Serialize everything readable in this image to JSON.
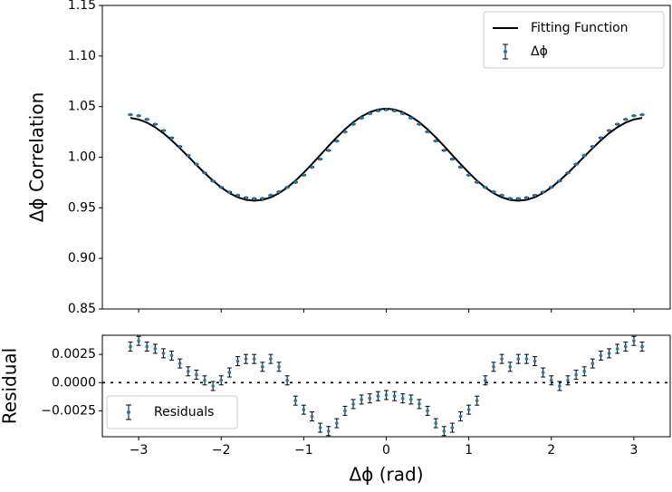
{
  "chart_data": [
    {
      "type": "errorbar",
      "ylabel": "Δϕ Correlation",
      "legend": "upper right",
      "xlim": [
        -3.44,
        3.44
      ],
      "ylim": [
        0.85,
        1.15
      ],
      "yticks": [
        0.85,
        {
          "value": 0.9,
          "label": "0.90"
        },
        0.95,
        {
          "value": 1,
          "label": "1.00"
        },
        1.05,
        {
          "value": 1.1,
          "label": "1.10"
        },
        1.15
      ],
      "x": [
        -3.1,
        -3.0,
        -2.9,
        -2.8,
        -2.7,
        -2.6,
        -2.5,
        -2.4,
        -2.3,
        -2.2,
        -2.1,
        -2.0,
        -1.9,
        -1.8,
        -1.7,
        -1.6,
        -1.5,
        -1.4,
        -1.3,
        -1.2,
        -1.1,
        -1.0,
        -0.9,
        -0.8,
        -0.7,
        -0.6,
        -0.5,
        -0.4,
        -0.3,
        -0.2,
        -0.1,
        0,
        0.1,
        0.2,
        0.3,
        0.4,
        0.5,
        0.6,
        0.7,
        0.8,
        0.9,
        1.0,
        1.1,
        1.2,
        1.3,
        1.4,
        1.5,
        1.6,
        1.7,
        1.8,
        1.9,
        2.0,
        2.1,
        2.2,
        2.3,
        2.4,
        2.5,
        2.6,
        2.7,
        2.8,
        2.9,
        3.0,
        3.1
      ],
      "series": [
        {
          "name": "Fitting Function",
          "kind": "line",
          "color": "#000000",
          "values": [
            1.0388,
            1.0373,
            1.0342,
            1.0296,
            1.0237,
            1.0167,
            1.0089,
            1.0007,
            0.9924,
            0.9843,
            0.9768,
            0.9701,
            0.9646,
            0.9604,
            0.9579,
            0.957,
            0.9578,
            0.9603,
            0.9644,
            0.97,
            0.9768,
            0.9847,
            0.9932,
            1.0021,
            1.011,
            1.0196,
            1.0276,
            1.0345,
            1.0402,
            1.0445,
            1.0471,
            1.048,
            1.0471,
            1.0445,
            1.0402,
            1.0345,
            1.0276,
            1.0196,
            1.011,
            1.0021,
            0.9932,
            0.9847,
            0.9768,
            0.97,
            0.9644,
            0.9603,
            0.9578,
            0.957,
            0.9579,
            0.9604,
            0.9646,
            0.9701,
            0.9768,
            0.9843,
            0.9924,
            1.0007,
            1.0089,
            1.0167,
            1.0237,
            1.0296,
            1.0342,
            1.0373,
            1.0388
          ]
        },
        {
          "name": "Δϕ",
          "kind": "errorbar",
          "color": "#1f77b4",
          "values": [
            1.042,
            1.041,
            1.0374,
            1.0326,
            1.0263,
            1.0191,
            1.0106,
            1.0017,
            0.9931,
            0.9845,
            0.9765,
            0.9703,
            0.9655,
            0.9623,
            0.96,
            0.9591,
            0.9592,
            0.9624,
            0.9658,
            0.9702,
            0.9752,
            0.9823,
            0.9902,
            0.9981,
            1.0067,
            1.016,
            1.0251,
            1.0326,
            1.0387,
            1.0431,
            1.0459,
            1.0469,
            1.0459,
            1.0431,
            1.0387,
            1.0326,
            1.0251,
            1.016,
            1.0067,
            0.9981,
            0.9902,
            0.9823,
            0.9752,
            0.9702,
            0.9658,
            0.9624,
            0.9592,
            0.9591,
            0.96,
            0.9623,
            0.9655,
            0.9703,
            0.9765,
            0.9845,
            0.9931,
            1.0017,
            1.0106,
            1.0191,
            1.0263,
            1.0326,
            1.0374,
            1.041,
            1.042
          ],
          "errors": [
            0.0004,
            0.0004,
            0.0004,
            0.0004,
            0.0004,
            0.0004,
            0.0004,
            0.0004,
            0.0004,
            0.0004,
            0.0004,
            0.0004,
            0.0004,
            0.0004,
            0.0004,
            0.0004,
            0.0004,
            0.0004,
            0.0004,
            0.0004,
            0.0004,
            0.0004,
            0.0004,
            0.0004,
            0.0004,
            0.0004,
            0.0004,
            0.0004,
            0.0004,
            0.0004,
            0.0004,
            0.0004,
            0.0004,
            0.0004,
            0.0004,
            0.0004,
            0.0004,
            0.0004,
            0.0004,
            0.0004,
            0.0004,
            0.0004,
            0.0004,
            0.0004,
            0.0004,
            0.0004,
            0.0004,
            0.0004,
            0.0004,
            0.0004,
            0.0004,
            0.0004,
            0.0004,
            0.0004,
            0.0004,
            0.0004,
            0.0004,
            0.0004,
            0.0004,
            0.0004,
            0.0004,
            0.0004,
            0.0004
          ]
        }
      ]
    },
    {
      "type": "errorbar",
      "ylabel": "Residual",
      "xlabel": "Δϕ (rad)",
      "legend": "lower left",
      "reference_line": 0,
      "xlim": [
        -3.44,
        3.44
      ],
      "ylim": [
        -0.0048,
        0.0042
      ],
      "xticks": [
        {
          "value": -3,
          "label": "−3"
        },
        {
          "value": -2,
          "label": "−2"
        },
        {
          "value": -1,
          "label": "−1"
        },
        0,
        1,
        2,
        3
      ],
      "yticks": [
        {
          "value": -0.0025,
          "label": "−0.0025"
        },
        {
          "value": 0,
          "label": "0.0000"
        },
        {
          "value": 0.0025,
          "label": "0.0025"
        }
      ],
      "x": [
        -3.1,
        -3.0,
        -2.9,
        -2.8,
        -2.7,
        -2.6,
        -2.5,
        -2.4,
        -2.3,
        -2.2,
        -2.1,
        -2.0,
        -1.9,
        -1.8,
        -1.7,
        -1.6,
        -1.5,
        -1.4,
        -1.3,
        -1.2,
        -1.1,
        -1.0,
        -0.9,
        -0.8,
        -0.7,
        -0.6,
        -0.5,
        -0.4,
        -0.3,
        -0.2,
        -0.1,
        0,
        0.1,
        0.2,
        0.3,
        0.4,
        0.5,
        0.6,
        0.7,
        0.8,
        0.9,
        1.0,
        1.1,
        1.2,
        1.3,
        1.4,
        1.5,
        1.6,
        1.7,
        1.8,
        1.9,
        2.0,
        2.1,
        2.2,
        2.3,
        2.4,
        2.5,
        2.6,
        2.7,
        2.8,
        2.9,
        3.0,
        3.1
      ],
      "series": [
        {
          "name": "Residuals",
          "kind": "errorbar",
          "color": "#1f77b4",
          "values": [
            0.0032,
            0.0037,
            0.0032,
            0.003,
            0.0026,
            0.0024,
            0.0017,
            0.001,
            0.0007,
            0.0002,
            -0.0003,
            0.0002,
            0.0009,
            0.0019,
            0.0021,
            0.0021,
            0.0014,
            0.0021,
            0.0014,
            0.0002,
            -0.0016,
            -0.0024,
            -0.003,
            -0.004,
            -0.0043,
            -0.0036,
            -0.0025,
            -0.0019,
            -0.0015,
            -0.0014,
            -0.0012,
            -0.0011,
            -0.0012,
            -0.0014,
            -0.0015,
            -0.0019,
            -0.0025,
            -0.0036,
            -0.0043,
            -0.004,
            -0.003,
            -0.0024,
            -0.0016,
            0.0002,
            0.0014,
            0.0021,
            0.0014,
            0.0021,
            0.0021,
            0.0019,
            0.0009,
            0.0002,
            -0.0003,
            0.0002,
            0.0007,
            0.001,
            0.0017,
            0.0024,
            0.0026,
            0.003,
            0.0032,
            0.0037,
            0.0032
          ],
          "errors": [
            0.0004,
            0.0004,
            0.0004,
            0.0004,
            0.0004,
            0.0004,
            0.0004,
            0.0004,
            0.0004,
            0.0004,
            0.0004,
            0.0004,
            0.0004,
            0.0004,
            0.0004,
            0.0004,
            0.0004,
            0.0004,
            0.0004,
            0.0004,
            0.0004,
            0.0004,
            0.0004,
            0.0004,
            0.0004,
            0.0004,
            0.0004,
            0.0004,
            0.0004,
            0.0004,
            0.0004,
            0.0004,
            0.0004,
            0.0004,
            0.0004,
            0.0004,
            0.0004,
            0.0004,
            0.0004,
            0.0004,
            0.0004,
            0.0004,
            0.0004,
            0.0004,
            0.0004,
            0.0004,
            0.0004,
            0.0004,
            0.0004,
            0.0004,
            0.0004,
            0.0004,
            0.0004,
            0.0004,
            0.0004,
            0.0004,
            0.0004,
            0.0004,
            0.0004,
            0.0004,
            0.0004,
            0.0004,
            0.0004
          ]
        }
      ]
    }
  ]
}
